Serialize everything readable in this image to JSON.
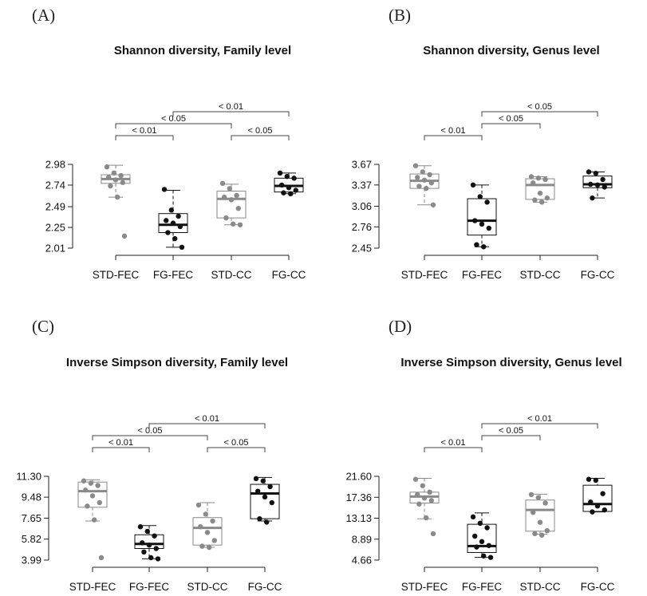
{
  "chart_data": [
    {
      "type": "boxplot",
      "panel_label": "(A)",
      "title": "Shannon diversity,  Family level",
      "categories": [
        "STD-FEC",
        "FG-FEC",
        "STD-CC",
        "FG-CC"
      ],
      "yticks": [
        "2.01",
        "2.25",
        "2.49",
        "2.74",
        "2.98"
      ],
      "ylim": [
        2.01,
        2.98
      ],
      "colors": [
        "#8a8a8a",
        "#111111",
        "#8a8a8a",
        "#111111"
      ],
      "box_stats": [
        {
          "min": 2.6,
          "q1": 2.76,
          "median": 2.81,
          "q3": 2.86,
          "max": 2.97
        },
        {
          "min": 2.02,
          "q1": 2.19,
          "median": 2.28,
          "q3": 2.41,
          "max": 2.68
        },
        {
          "min": 2.28,
          "q1": 2.36,
          "median": 2.58,
          "q3": 2.67,
          "max": 2.75
        },
        {
          "min": 2.64,
          "q1": 2.66,
          "median": 2.73,
          "q3": 2.82,
          "max": 2.88
        }
      ],
      "points": [
        [
          2.95,
          2.88,
          2.85,
          2.83,
          2.8,
          2.77,
          2.73,
          2.6,
          2.15
        ],
        [
          2.69,
          2.45,
          2.38,
          2.33,
          2.3,
          2.26,
          2.19,
          2.12,
          2.02
        ],
        [
          2.76,
          2.7,
          2.62,
          2.6,
          2.57,
          2.47,
          2.36,
          2.29,
          2.28
        ],
        [
          2.88,
          2.84,
          2.82,
          2.74,
          2.71,
          2.68,
          2.65,
          2.64
        ]
      ],
      "comparisons": [
        {
          "from": 1,
          "to": 3,
          "label": "< 0.01"
        },
        {
          "from": 0,
          "to": 2,
          "label": "< 0.05"
        },
        {
          "from": 0,
          "to": 1,
          "label": "< 0.01"
        },
        {
          "from": 2,
          "to": 3,
          "label": "< 0.05"
        }
      ]
    },
    {
      "type": "boxplot",
      "panel_label": "(B)",
      "title": "Shannon diversity,  Genus level",
      "categories": [
        "STD-FEC",
        "FG-FEC",
        "STD-CC",
        "FG-CC"
      ],
      "yticks": [
        "2.45",
        "2.76",
        "3.06",
        "3.37",
        "3.67"
      ],
      "ylim": [
        2.45,
        3.67
      ],
      "colors": [
        "#8a8a8a",
        "#111111",
        "#8a8a8a",
        "#111111"
      ],
      "box_stats": [
        {
          "min": 3.08,
          "q1": 3.32,
          "median": 3.43,
          "q3": 3.53,
          "max": 3.65
        },
        {
          "min": 2.47,
          "q1": 2.64,
          "median": 2.85,
          "q3": 3.17,
          "max": 3.37
        },
        {
          "min": 3.12,
          "q1": 3.16,
          "median": 3.37,
          "q3": 3.46,
          "max": 3.49
        },
        {
          "min": 3.18,
          "q1": 3.33,
          "median": 3.38,
          "q3": 3.5,
          "max": 3.56
        }
      ],
      "points": [
        [
          3.65,
          3.56,
          3.52,
          3.48,
          3.44,
          3.4,
          3.35,
          3.32,
          3.08
        ],
        [
          3.37,
          3.2,
          3.12,
          2.85,
          2.8,
          2.74,
          2.5,
          2.47
        ],
        [
          3.49,
          3.47,
          3.45,
          3.4,
          3.25,
          3.18,
          3.15,
          3.12
        ],
        [
          3.56,
          3.54,
          3.45,
          3.38,
          3.37,
          3.34,
          3.18
        ]
      ],
      "comparisons": [
        {
          "from": 1,
          "to": 3,
          "label": "< 0.05"
        },
        {
          "from": 1,
          "to": 2,
          "label": "< 0.05"
        },
        {
          "from": 0,
          "to": 1,
          "label": "< 0.01"
        }
      ]
    },
    {
      "type": "boxplot",
      "panel_label": "(C)",
      "title": "Inverse Simpson diversity,  Family level",
      "categories": [
        "STD-FEC",
        "FG-FEC",
        "STD-CC",
        "FG-CC"
      ],
      "yticks": [
        "3.99",
        "5.82",
        "7.65",
        "9.48",
        "11.30"
      ],
      "ylim": [
        3.99,
        11.3
      ],
      "colors": [
        "#8a8a8a",
        "#111111",
        "#8a8a8a",
        "#111111"
      ],
      "box_stats": [
        {
          "min": 7.4,
          "q1": 8.6,
          "median": 10.0,
          "q3": 10.8,
          "max": 11.0
        },
        {
          "min": 4.1,
          "q1": 5.0,
          "median": 5.4,
          "q3": 6.2,
          "max": 7.0
        },
        {
          "min": 5.1,
          "q1": 5.3,
          "median": 6.8,
          "q3": 7.7,
          "max": 9.0
        },
        {
          "min": 7.4,
          "q1": 7.6,
          "median": 9.8,
          "q3": 10.6,
          "max": 11.2
        }
      ],
      "points": [
        [
          10.9,
          10.7,
          10.5,
          10.1,
          9.6,
          9.0,
          8.7,
          7.5,
          4.2
        ],
        [
          6.9,
          6.5,
          6.1,
          5.5,
          5.3,
          5.0,
          4.7,
          4.2,
          4.1
        ],
        [
          8.8,
          8.0,
          7.4,
          6.9,
          6.4,
          5.7,
          5.2,
          5.1
        ],
        [
          11.1,
          10.9,
          10.4,
          10.0,
          9.5,
          9.0,
          7.6,
          7.3
        ]
      ],
      "comparisons": [
        {
          "from": 1,
          "to": 3,
          "label": "< 0.01"
        },
        {
          "from": 0,
          "to": 2,
          "label": "< 0.05"
        },
        {
          "from": 0,
          "to": 1,
          "label": "< 0.01"
        },
        {
          "from": 2,
          "to": 3,
          "label": "< 0.05"
        }
      ]
    },
    {
      "type": "boxplot",
      "panel_label": "(D)",
      "title": "Inverse Simpson diversity,  Genus level",
      "categories": [
        "STD-FEC",
        "FG-FEC",
        "STD-CC",
        "FG-CC"
      ],
      "yticks": [
        "4.66",
        "8.89",
        "13.13",
        "17.36",
        "21.60"
      ],
      "ylim": [
        4.66,
        21.6
      ],
      "colors": [
        "#8a8a8a",
        "#111111",
        "#8a8a8a",
        "#111111"
      ],
      "box_stats": [
        {
          "min": 13.0,
          "q1": 16.2,
          "median": 17.5,
          "q3": 18.4,
          "max": 21.2
        },
        {
          "min": 5.2,
          "q1": 6.2,
          "median": 7.5,
          "q3": 11.9,
          "max": 14.2
        },
        {
          "min": 9.9,
          "q1": 10.5,
          "median": 14.8,
          "q3": 16.8,
          "max": 18.0
        },
        {
          "min": 14.4,
          "q1": 14.5,
          "median": 16.0,
          "q3": 19.8,
          "max": 21.2
        }
      ],
      "points": [
        [
          21.0,
          19.7,
          18.4,
          17.9,
          17.2,
          16.7,
          16.0,
          13.2,
          10.0
        ],
        [
          13.4,
          12.1,
          11.2,
          9.5,
          8.4,
          7.6,
          7.3,
          5.5,
          5.2
        ],
        [
          17.9,
          17.3,
          16.2,
          14.3,
          12.3,
          10.6,
          10.0,
          9.7
        ],
        [
          21.0,
          20.8,
          18.1,
          16.4,
          15.6,
          14.8,
          14.4
        ]
      ],
      "comparisons": [
        {
          "from": 1,
          "to": 3,
          "label": "< 0.01"
        },
        {
          "from": 1,
          "to": 2,
          "label": "< 0.05"
        },
        {
          "from": 0,
          "to": 1,
          "label": "< 0.01"
        }
      ]
    }
  ]
}
